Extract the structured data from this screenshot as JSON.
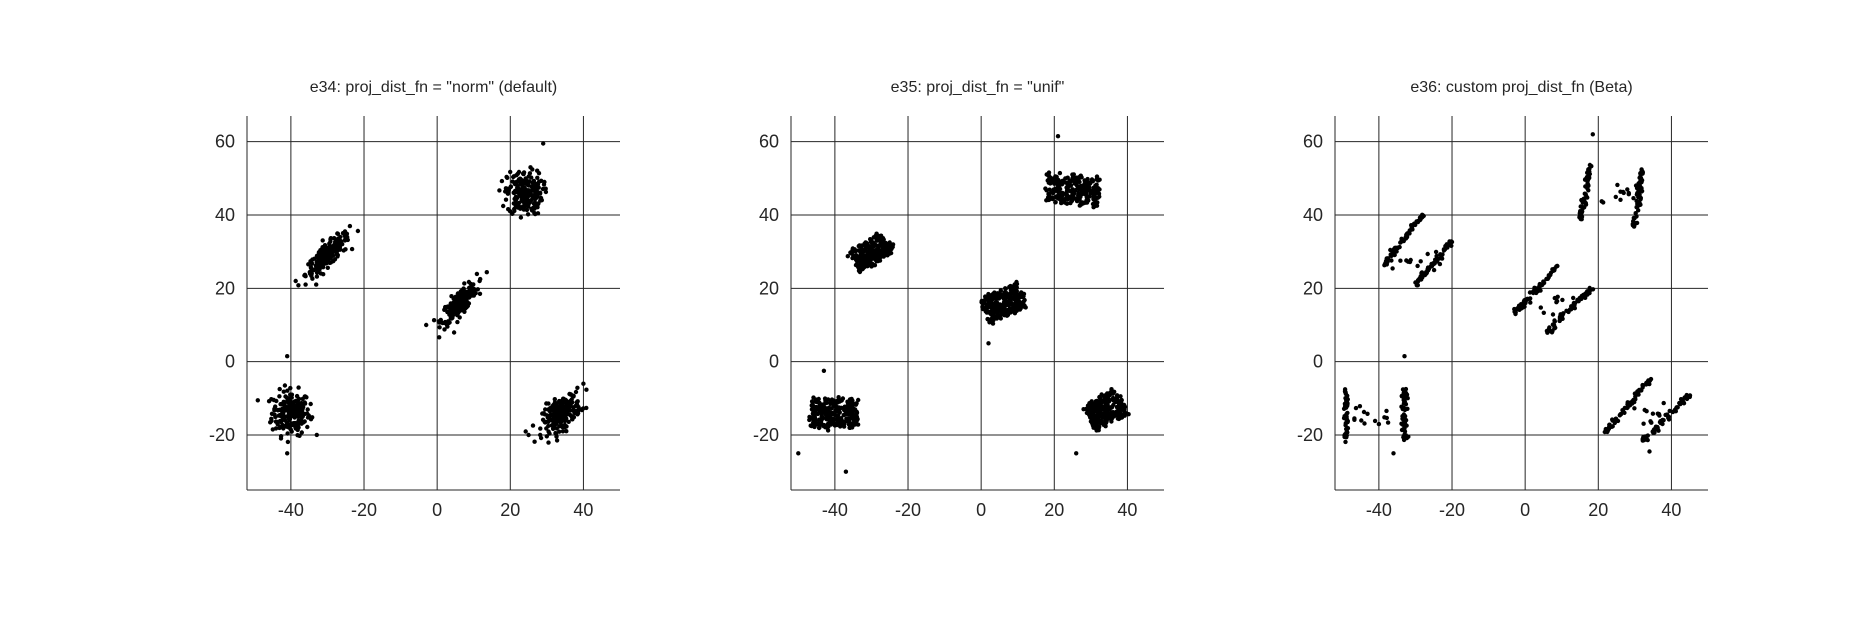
{
  "figure": {
    "background": "#ffffff",
    "marker_color": "#000000",
    "axis_color": "#262626"
  },
  "chart_data": [
    {
      "type": "scatter",
      "title": "e34: proj_dist_fn = \"norm\" (default)",
      "xlabel": "",
      "ylabel": "",
      "xlim": [
        -52,
        50
      ],
      "ylim": [
        -35,
        67
      ],
      "xticks": [
        -40,
        -20,
        0,
        20,
        40
      ],
      "yticks": [
        -20,
        0,
        20,
        40,
        60
      ],
      "grid": true,
      "clusters": [
        {
          "kind": "blob",
          "center": [
            -40,
            -14
          ],
          "spread": [
            2.6,
            3.0
          ],
          "corr": 0.0,
          "count": 220
        },
        {
          "kind": "blob",
          "center": [
            -30,
            29
          ],
          "spread": [
            3.0,
            3.0
          ],
          "corr": 0.85,
          "count": 220
        },
        {
          "kind": "blob",
          "center": [
            6,
            16
          ],
          "spread": [
            2.4,
            2.8
          ],
          "corr": 0.8,
          "count": 220
        },
        {
          "kind": "blob",
          "center": [
            24,
            46
          ],
          "spread": [
            2.4,
            3.0
          ],
          "corr": 0.0,
          "count": 220
        },
        {
          "kind": "blob",
          "center": [
            34,
            -14
          ],
          "spread": [
            2.6,
            2.6
          ],
          "corr": 0.55,
          "count": 220
        }
      ],
      "outliers": [
        [
          -41,
          1.5
        ],
        [
          -41,
          -25
        ],
        [
          29,
          59.5
        ],
        [
          40,
          -6
        ],
        [
          25,
          -20
        ],
        [
          -3,
          10
        ]
      ]
    },
    {
      "type": "scatter",
      "title": "e35: proj_dist_fn = \"unif\"",
      "xlabel": "",
      "ylabel": "",
      "xlim": [
        -52,
        50
      ],
      "ylim": [
        -35,
        67
      ],
      "xticks": [
        -40,
        -20,
        0,
        20,
        40
      ],
      "yticks": [
        -20,
        0,
        20,
        40,
        60
      ],
      "grid": true,
      "clusters": [
        {
          "kind": "box",
          "center": [
            -40,
            -14
          ],
          "half": [
            6.5,
            3.8
          ],
          "angle": 0,
          "count": 240
        },
        {
          "kind": "box",
          "center": [
            -30,
            30
          ],
          "half": [
            5.5,
            3.2
          ],
          "angle": 32,
          "count": 240
        },
        {
          "kind": "box",
          "center": [
            6,
            16
          ],
          "half": [
            5.5,
            3.5
          ],
          "angle": 22,
          "count": 240
        },
        {
          "kind": "box",
          "center": [
            25,
            47
          ],
          "half": [
            7.0,
            3.8
          ],
          "angle": -4,
          "count": 240
        },
        {
          "kind": "box",
          "center": [
            34,
            -13
          ],
          "half": [
            5.0,
            3.8
          ],
          "angle": 28,
          "count": 240
        }
      ],
      "outliers": [
        [
          21,
          61.5
        ],
        [
          -43,
          -2.5
        ],
        [
          -37,
          -30
        ],
        [
          -50,
          -25
        ],
        [
          2,
          5
        ],
        [
          26,
          -25
        ]
      ]
    },
    {
      "type": "scatter",
      "title": "e36: custom proj_dist_fn (Beta)",
      "xlabel": "",
      "ylabel": "",
      "xlim": [
        -52,
        50
      ],
      "ylim": [
        -35,
        67
      ],
      "xticks": [
        -40,
        -20,
        0,
        20,
        40
      ],
      "yticks": [
        -20,
        0,
        20,
        40,
        60
      ],
      "grid": true,
      "clusters": [
        {
          "kind": "lines",
          "a": [
            -49,
            -21
          ],
          "b": [
            -49,
            -8
          ],
          "count": 60
        },
        {
          "kind": "lines",
          "a": [
            -33,
            -21
          ],
          "b": [
            -33,
            -8
          ],
          "count": 60
        },
        {
          "kind": "lines",
          "a": [
            -48,
            -16
          ],
          "b": [
            -34,
            -14
          ],
          "count": 14,
          "jitter": 1.5
        },
        {
          "kind": "lines",
          "a": [
            -39,
            26
          ],
          "b": [
            -28,
            40
          ],
          "count": 60
        },
        {
          "kind": "lines",
          "a": [
            -30,
            21
          ],
          "b": [
            -20,
            33
          ],
          "count": 60
        },
        {
          "kind": "lines",
          "a": [
            -37,
            27
          ],
          "b": [
            -23,
            30
          ],
          "count": 14,
          "jitter": 1.5
        },
        {
          "kind": "lines",
          "a": [
            -3,
            13
          ],
          "b": [
            9,
            26
          ],
          "count": 60
        },
        {
          "kind": "lines",
          "a": [
            6,
            8
          ],
          "b": [
            18,
            20
          ],
          "count": 60
        },
        {
          "kind": "lines",
          "a": [
            2,
            18
          ],
          "b": [
            12,
            14
          ],
          "count": 14,
          "jitter": 1.8
        },
        {
          "kind": "lines",
          "a": [
            15,
            39
          ],
          "b": [
            18,
            54
          ],
          "count": 60
        },
        {
          "kind": "lines",
          "a": [
            30,
            37
          ],
          "b": [
            32,
            52
          ],
          "count": 60
        },
        {
          "kind": "lines",
          "a": [
            19,
            43
          ],
          "b": [
            30,
            47
          ],
          "count": 14,
          "jitter": 1.5
        },
        {
          "kind": "lines",
          "a": [
            22,
            -19
          ],
          "b": [
            34,
            -5
          ],
          "count": 60
        },
        {
          "kind": "lines",
          "a": [
            32,
            -22
          ],
          "b": [
            45,
            -9
          ],
          "count": 60
        },
        {
          "kind": "lines",
          "a": [
            27,
            -13
          ],
          "b": [
            38,
            -14
          ],
          "count": 14,
          "jitter": 1.8
        }
      ],
      "outliers": [
        [
          -33,
          1.5
        ],
        [
          18.5,
          62
        ],
        [
          -36,
          -25
        ],
        [
          34,
          -24.5
        ]
      ]
    }
  ]
}
